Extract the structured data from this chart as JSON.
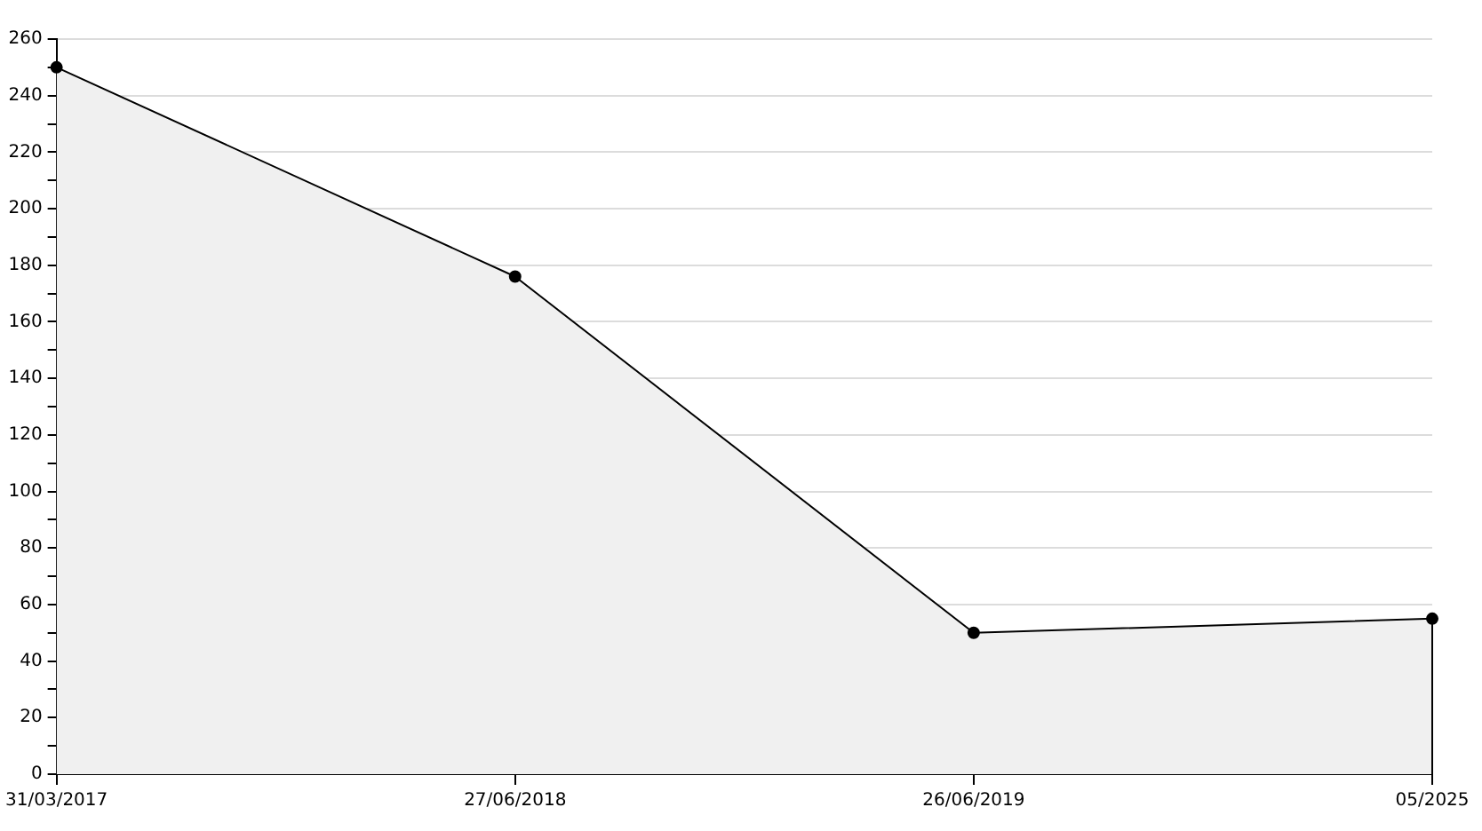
{
  "chart_data": {
    "type": "area",
    "categories": [
      "31/03/2017",
      "27/06/2018",
      "26/06/2019",
      "05/2025"
    ],
    "series": [
      {
        "color": "#000000",
        "values": [
          250,
          176,
          50,
          55
        ]
      }
    ],
    "ylim": [
      0,
      260
    ],
    "yticks": [
      0,
      {
        "value": 10,
        "label": null
      },
      20,
      {
        "value": 30,
        "label": null
      },
      40,
      {
        "value": 50,
        "label": null
      },
      60,
      {
        "value": 70,
        "label": null
      },
      80,
      {
        "value": 90,
        "label": null
      },
      100,
      {
        "value": 110,
        "label": null
      },
      120,
      {
        "value": 130,
        "label": null
      },
      140,
      {
        "value": 150,
        "label": null
      },
      160,
      {
        "value": 170,
        "label": null
      },
      180,
      {
        "value": 190,
        "label": null
      },
      200,
      {
        "value": 210,
        "label": null
      },
      220,
      {
        "value": 230,
        "label": null
      },
      240,
      {
        "value": 250,
        "label": null
      },
      260
    ],
    "grid": "y",
    "legend": false,
    "marker": "circle",
    "line_style": "solid"
  }
}
